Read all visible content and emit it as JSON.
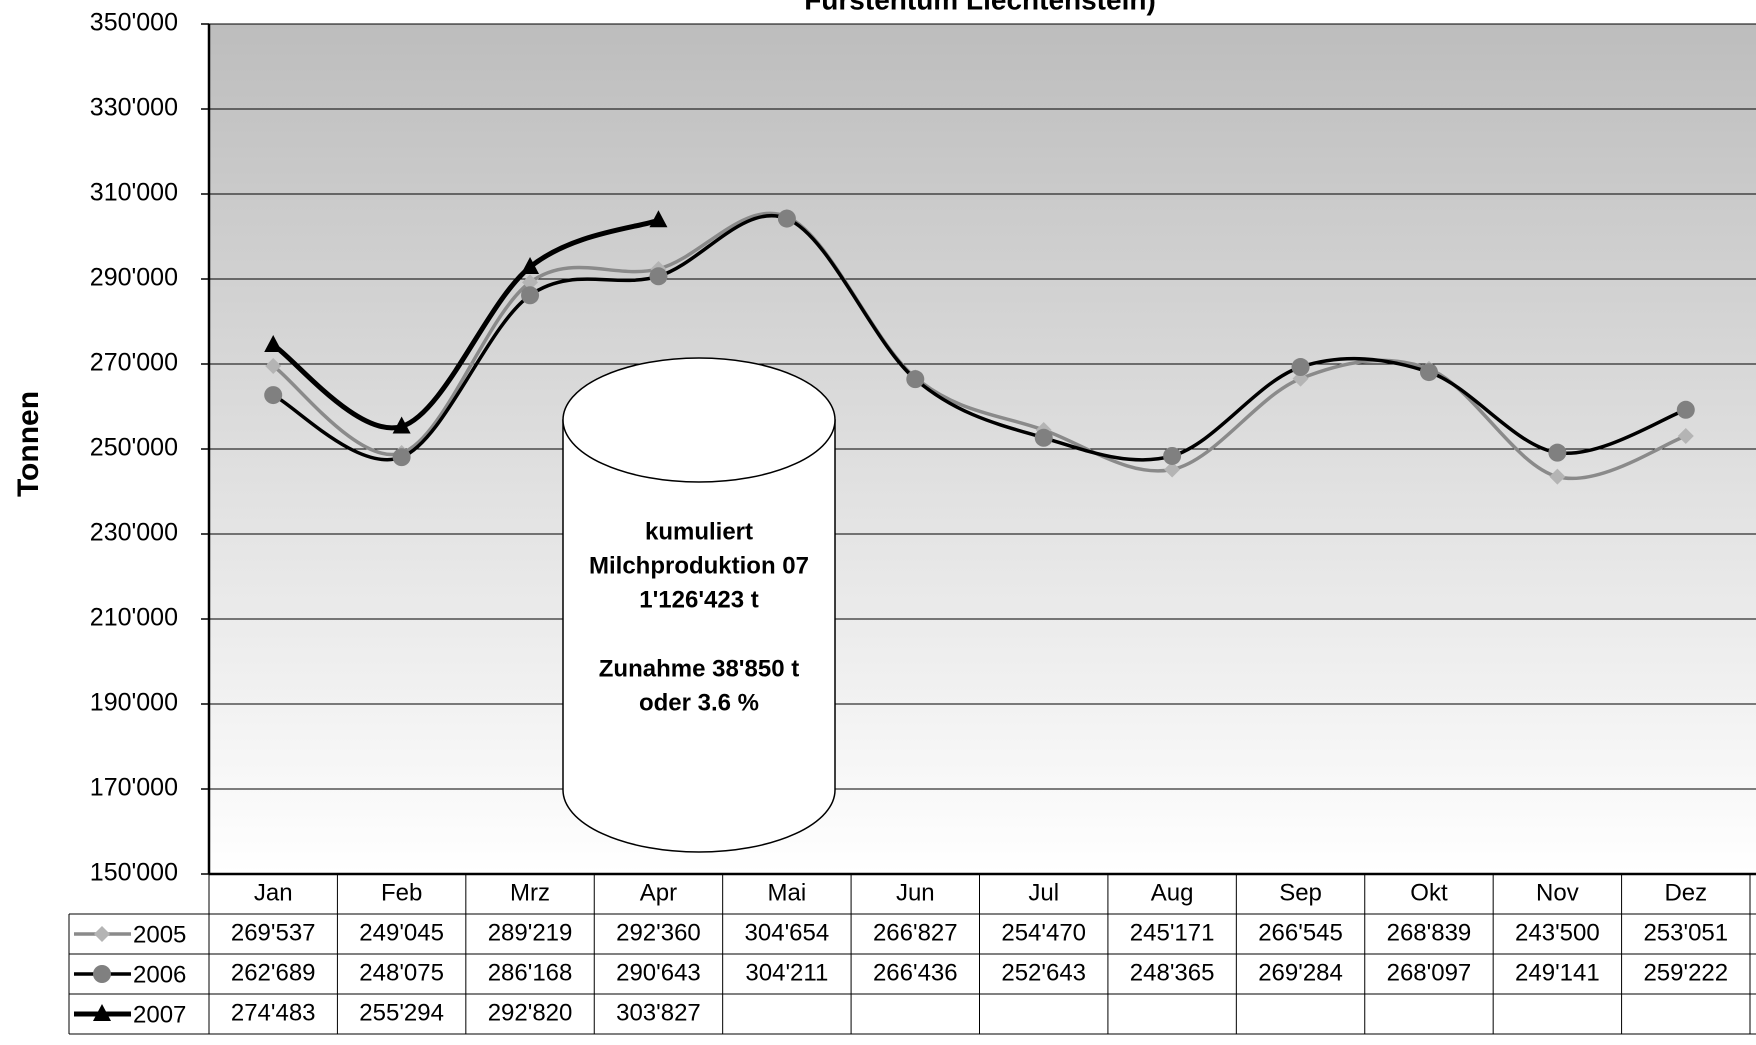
{
  "chart_data": {
    "type": "line",
    "title": "Fürstentum Liechtenstein)",
    "y_label": "Tonnen",
    "categories": [
      "Jan",
      "Feb",
      "Mrz",
      "Apr",
      "Mai",
      "Jun",
      "Jul",
      "Aug",
      "Sep",
      "Okt",
      "Nov",
      "Dez"
    ],
    "series": [
      {
        "name": "2005",
        "color": "#8a8a8a",
        "marker": "diamond",
        "marker_color": "#b4b4b4",
        "values": [
          269537,
          249045,
          289219,
          292360,
          304654,
          266827,
          254470,
          245171,
          266545,
          268839,
          243500,
          253051
        ],
        "value_labels": [
          "269'537",
          "249'045",
          "289'219",
          "292'360",
          "304'654",
          "266'827",
          "254'470",
          "245'171",
          "266'545",
          "268'839",
          "243'500",
          "253'051"
        ]
      },
      {
        "name": "2006",
        "color": "#000000",
        "marker": "circle",
        "marker_color": "#808080",
        "values": [
          262689,
          248075,
          286168,
          290643,
          304211,
          266436,
          252643,
          248365,
          269284,
          268097,
          249141,
          259222
        ],
        "value_labels": [
          "262'689",
          "248'075",
          "286'168",
          "290'643",
          "304'211",
          "266'436",
          "252'643",
          "248'365",
          "269'284",
          "268'097",
          "249'141",
          "259'222"
        ]
      },
      {
        "name": "2007",
        "color": "#000000",
        "marker": "triangle",
        "marker_color": "#000000",
        "values": [
          274483,
          255294,
          292820,
          303827,
          null,
          null,
          null,
          null,
          null,
          null,
          null,
          null
        ],
        "value_labels": [
          "274'483",
          "255'294",
          "292'820",
          "303'827",
          null,
          null,
          null,
          null,
          null,
          null,
          null,
          null
        ]
      }
    ],
    "ylim": [
      150000,
      350000
    ],
    "yticks": [
      {
        "value": 150000,
        "label": "150'000"
      },
      {
        "value": 170000,
        "label": "170'000"
      },
      {
        "value": 190000,
        "label": "190'000"
      },
      {
        "value": 210000,
        "label": "210'000"
      },
      {
        "value": 230000,
        "label": "230'000"
      },
      {
        "value": 250000,
        "label": "250'000"
      },
      {
        "value": 270000,
        "label": "270'000"
      },
      {
        "value": 290000,
        "label": "290'000"
      },
      {
        "value": 310000,
        "label": "310'000"
      },
      {
        "value": 330000,
        "label": "330'000"
      },
      {
        "value": 350000,
        "label": "350'000"
      }
    ],
    "grid": true,
    "annotation": [
      "kumuliert",
      "Milchproduktion 07",
      "1'126'423  t",
      "Zunahme 38'850  t",
      "oder 3.6 %"
    ]
  }
}
